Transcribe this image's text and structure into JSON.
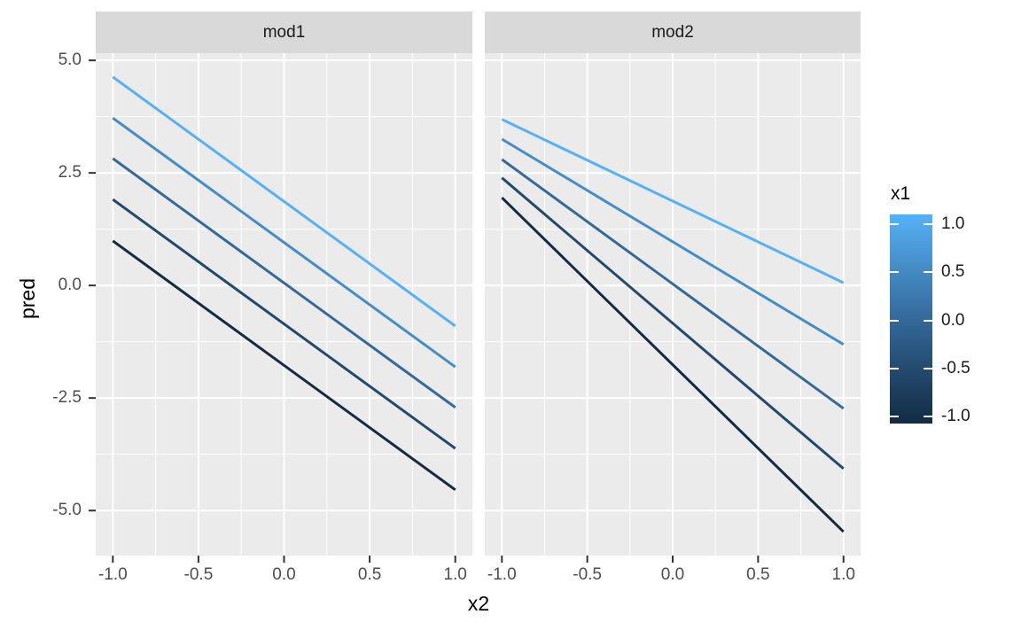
{
  "chart_data": {
    "type": "line",
    "xlabel": "x2",
    "ylabel": "pred",
    "x_tick_labels": [
      "-1.0",
      "-0.5",
      "0.0",
      "0.5",
      "1.0"
    ],
    "x_tick_values": [
      -1.0,
      -0.5,
      0.0,
      0.5,
      1.0
    ],
    "y_tick_labels": [
      "5.0",
      "2.5",
      "0.0",
      "-2.5",
      "-5.0"
    ],
    "y_tick_values": [
      5.0,
      2.5,
      0.0,
      -2.5,
      -5.0
    ],
    "x_minor_ticks": [
      -0.75,
      -0.25,
      0.25,
      0.75
    ],
    "y_minor_ticks": [
      3.75,
      1.25,
      -1.25,
      -3.75
    ],
    "xlim": [
      -1.1,
      1.1
    ],
    "ylim": [
      -6.0,
      5.16
    ],
    "grid": true,
    "legend_position": "right",
    "facets": [
      {
        "label": "mod1",
        "series": [
          {
            "name": "x1 = 1.0",
            "x1": 1.0,
            "color": "#56B1F7",
            "x": [
              -1,
              1
            ],
            "y": [
              4.63,
              -0.9
            ]
          },
          {
            "name": "x1 = 0.5",
            "x1": 0.5,
            "color": "#458DC7",
            "x": [
              -1,
              1
            ],
            "y": [
              3.72,
              -1.81
            ]
          },
          {
            "name": "x1 = 0.0",
            "x1": 0.0,
            "color": "#34699A",
            "x": [
              -1,
              1
            ],
            "y": [
              2.82,
              -2.71
            ]
          },
          {
            "name": "x1 = -0.5",
            "x1": -0.5,
            "color": "#23496D",
            "x": [
              -1,
              1
            ],
            "y": [
              1.91,
              -3.62
            ]
          },
          {
            "name": "x1 = -1.0",
            "x1": -1.0,
            "color": "#132B43",
            "x": [
              -1,
              1
            ],
            "y": [
              0.99,
              -4.54
            ]
          }
        ]
      },
      {
        "label": "mod2",
        "series": [
          {
            "name": "x1 = 1.0",
            "x1": 1.0,
            "color": "#56B1F7",
            "x": [
              -1,
              1
            ],
            "y": [
              3.69,
              0.06
            ]
          },
          {
            "name": "x1 = 0.5",
            "x1": 0.5,
            "color": "#458DC7",
            "x": [
              -1,
              1
            ],
            "y": [
              3.25,
              -1.31
            ]
          },
          {
            "name": "x1 = 0.0",
            "x1": 0.0,
            "color": "#34699A",
            "x": [
              -1,
              1
            ],
            "y": [
              2.8,
              -2.73
            ]
          },
          {
            "name": "x1 = -0.5",
            "x1": -0.5,
            "color": "#23496D",
            "x": [
              -1,
              1
            ],
            "y": [
              2.39,
              -4.07
            ]
          },
          {
            "name": "x1 = -1.0",
            "x1": -1.0,
            "color": "#132B43",
            "x": [
              -1,
              1
            ],
            "y": [
              1.95,
              -5.47
            ]
          }
        ]
      }
    ],
    "legend": {
      "title": "x1",
      "type": "colorbar",
      "tick_labels": [
        "1.0",
        "0.5",
        "0.0",
        "-0.5",
        "-1.0"
      ],
      "tick_values": [
        1.0,
        0.5,
        0.0,
        -0.5,
        -1.0
      ],
      "gradient_low": "#132B43",
      "gradient_high": "#56B1F7",
      "gradient_stops_top_to_bottom": [
        "#56B1F7",
        "#458DC7",
        "#34699A",
        "#23496D",
        "#132B43"
      ]
    },
    "colors": {
      "panel_bg": "#EBEBEB",
      "strip_bg": "#D9D9D9",
      "gridline": "#FFFFFF",
      "tick_mark": "#333333",
      "axis_text": "#4D4D4D",
      "strip_text": "#1A1A1A"
    }
  }
}
